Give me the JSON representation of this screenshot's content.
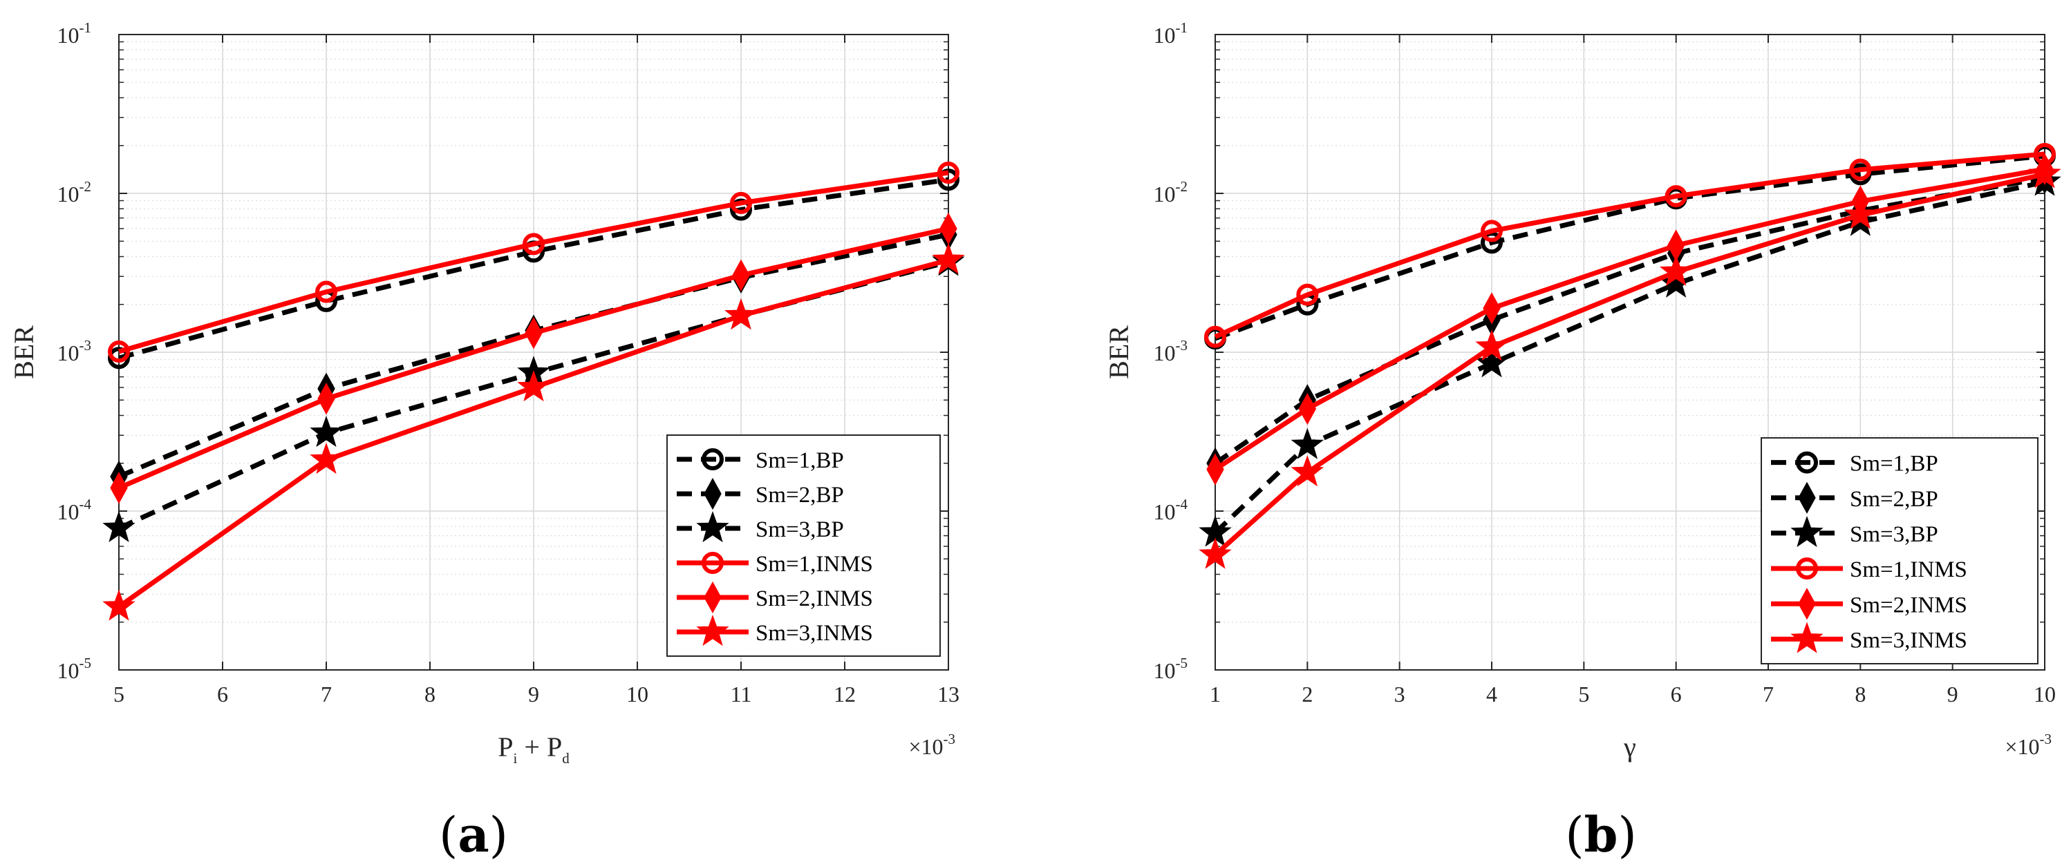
{
  "chart_data": [
    {
      "type": "line",
      "panel_label": "(a)",
      "panel_letter": "a",
      "xlabel_main": "P",
      "xlabel_sub1": "i",
      "xlabel_plus": " + P",
      "xlabel_sub2": "d",
      "ylabel": "BER",
      "xlim": [
        5,
        13
      ],
      "ylim": [
        1e-05,
        0.1
      ],
      "yscale": "log",
      "grid": true,
      "x_multiplier": "×10",
      "x_multiplier_exp": "-3",
      "x_ticks": [
        "5",
        "6",
        "7",
        "8",
        "9",
        "10",
        "11",
        "12",
        "13"
      ],
      "y_ticks": [
        {
          "base": "10",
          "exp": "-5"
        },
        {
          "base": "10",
          "exp": "-4"
        },
        {
          "base": "10",
          "exp": "-3"
        },
        {
          "base": "10",
          "exp": "-2"
        },
        {
          "base": "10",
          "exp": "-1"
        }
      ],
      "legend_position": "bottom-right",
      "series": [
        {
          "name": "Sm=1,BP",
          "color": "#000000",
          "dash": "dashed",
          "marker": "circle",
          "x": [
            5,
            7,
            9,
            11,
            13
          ],
          "y": [
            0.00092,
            0.0021,
            0.0043,
            0.0079,
            0.0122
          ]
        },
        {
          "name": "Sm=2,BP",
          "color": "#000000",
          "dash": "dashed",
          "marker": "diamond",
          "x": [
            5,
            7,
            9,
            11,
            13
          ],
          "y": [
            0.000165,
            0.00059,
            0.00137,
            0.00295,
            0.0055
          ]
        },
        {
          "name": "Sm=3,BP",
          "color": "#000000",
          "dash": "dashed",
          "marker": "star",
          "x": [
            5,
            7,
            9,
            11,
            13
          ],
          "y": [
            7.8e-05,
            0.00031,
            0.00074,
            0.0017,
            0.0037
          ]
        },
        {
          "name": "Sm=1,INMS",
          "color": "#ff0000",
          "dash": "solid",
          "marker": "circle",
          "x": [
            5,
            7,
            9,
            11,
            13
          ],
          "y": [
            0.00101,
            0.0024,
            0.0048,
            0.0087,
            0.0135
          ]
        },
        {
          "name": "Sm=2,INMS",
          "color": "#ff0000",
          "dash": "solid",
          "marker": "diamond",
          "x": [
            5,
            7,
            9,
            11,
            13
          ],
          "y": [
            0.00014,
            0.00051,
            0.00132,
            0.00305,
            0.006
          ]
        },
        {
          "name": "Sm=3,INMS",
          "color": "#ff0000",
          "dash": "solid",
          "marker": "star",
          "x": [
            5,
            7,
            9,
            11,
            13
          ],
          "y": [
            2.5e-05,
            0.00021,
            0.0006,
            0.0017,
            0.0038
          ]
        }
      ]
    },
    {
      "type": "line",
      "panel_label": "(b)",
      "panel_letter": "b",
      "xlabel_main": "γ",
      "ylabel": "BER",
      "xlim": [
        1,
        10
      ],
      "ylim": [
        1e-05,
        0.1
      ],
      "yscale": "log",
      "grid": true,
      "x_multiplier": "×10",
      "x_multiplier_exp": "-3",
      "x_ticks": [
        "1",
        "2",
        "3",
        "4",
        "5",
        "6",
        "7",
        "8",
        "9",
        "10"
      ],
      "y_ticks": [
        {
          "base": "10",
          "exp": "-5"
        },
        {
          "base": "10",
          "exp": "-4"
        },
        {
          "base": "10",
          "exp": "-3"
        },
        {
          "base": "10",
          "exp": "-2"
        },
        {
          "base": "10",
          "exp": "-1"
        }
      ],
      "legend_position": "bottom-right",
      "series": [
        {
          "name": "Sm=1,BP",
          "color": "#000000",
          "dash": "dashed",
          "marker": "circle",
          "x": [
            1,
            2,
            4,
            6,
            8,
            10
          ],
          "y": [
            0.00122,
            0.002,
            0.0049,
            0.0093,
            0.0132,
            0.0172
          ]
        },
        {
          "name": "Sm=2,BP",
          "color": "#000000",
          "dash": "dashed",
          "marker": "diamond",
          "x": [
            1,
            2,
            4,
            6,
            8,
            10
          ],
          "y": [
            0.0002,
            0.0005,
            0.0016,
            0.0042,
            0.0078,
            0.0125
          ]
        },
        {
          "name": "Sm=3,BP",
          "color": "#000000",
          "dash": "dashed",
          "marker": "star",
          "x": [
            1,
            2,
            4,
            6,
            8,
            10
          ],
          "y": [
            7.3e-05,
            0.00026,
            0.00085,
            0.0027,
            0.0066,
            0.0118
          ]
        },
        {
          "name": "Sm=1,INMS",
          "color": "#ff0000",
          "dash": "solid",
          "marker": "circle",
          "x": [
            1,
            2,
            4,
            6,
            8,
            10
          ],
          "y": [
            0.00125,
            0.0023,
            0.0058,
            0.0096,
            0.0141,
            0.0177
          ]
        },
        {
          "name": "Sm=2,INMS",
          "color": "#ff0000",
          "dash": "solid",
          "marker": "diamond",
          "x": [
            1,
            2,
            4,
            6,
            8,
            10
          ],
          "y": [
            0.000183,
            0.00044,
            0.00189,
            0.0047,
            0.0089,
            0.0142
          ]
        },
        {
          "name": "Sm=3,INMS",
          "color": "#ff0000",
          "dash": "solid",
          "marker": "star",
          "x": [
            1,
            2,
            4,
            6,
            8,
            10
          ],
          "y": [
            5.3e-05,
            0.000175,
            0.00108,
            0.0032,
            0.0073,
            0.0132
          ]
        }
      ]
    }
  ]
}
